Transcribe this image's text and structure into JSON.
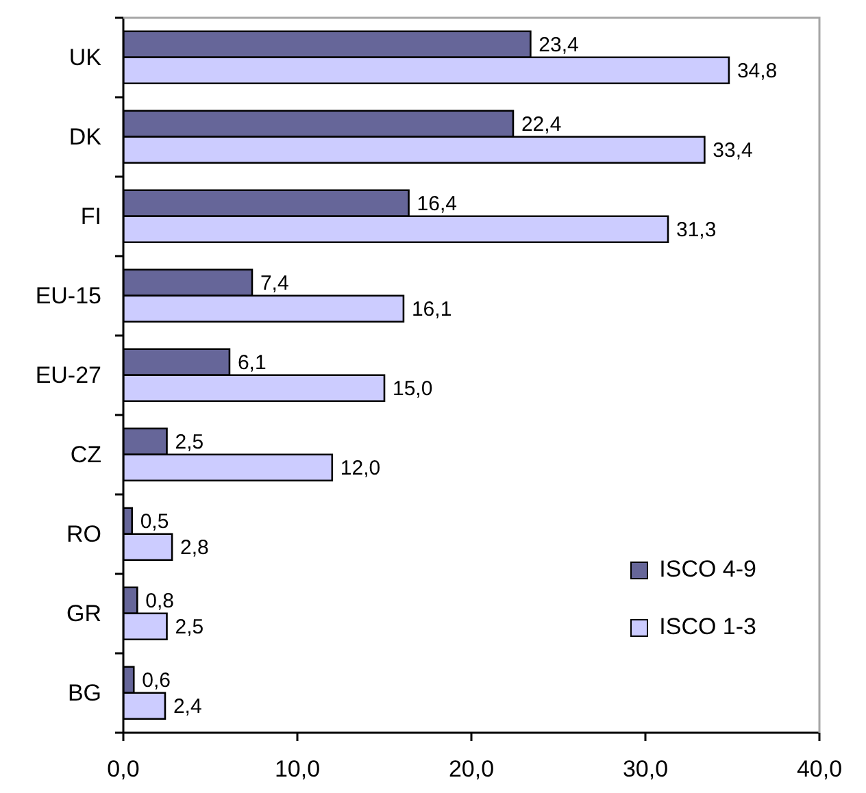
{
  "chart_data": {
    "type": "bar",
    "orientation": "horizontal",
    "categories": [
      "UK",
      "DK",
      "FI",
      "EU-15",
      "EU-27",
      "CZ",
      "RO",
      "GR",
      "BG"
    ],
    "series": [
      {
        "name": "ISCO 4-9",
        "color": "#666699",
        "values": [
          23.4,
          22.4,
          16.4,
          7.4,
          6.1,
          2.5,
          0.5,
          0.8,
          0.6
        ],
        "value_labels": [
          "23,4",
          "22,4",
          "16,4",
          "7,4",
          "6,1",
          "2,5",
          "0,5",
          "0,8",
          "0,6"
        ]
      },
      {
        "name": "ISCO 1-3",
        "color": "#ccccff",
        "values": [
          34.8,
          33.4,
          31.3,
          16.1,
          15.0,
          12.0,
          2.8,
          2.5,
          2.4
        ],
        "value_labels": [
          "34,8",
          "33,4",
          "31,3",
          "16,1",
          "15,0",
          "12,0",
          "2,8",
          "2,5",
          "2,4"
        ]
      }
    ],
    "xlim": [
      0,
      40
    ],
    "xticks": [
      {
        "value": 0,
        "label": "0,0"
      },
      {
        "value": 10,
        "label": "10,0"
      },
      {
        "value": 20,
        "label": "20,0"
      },
      {
        "value": 30,
        "label": "30,0"
      },
      {
        "value": 40,
        "label": "40,0"
      }
    ],
    "legend": "bottom right"
  }
}
